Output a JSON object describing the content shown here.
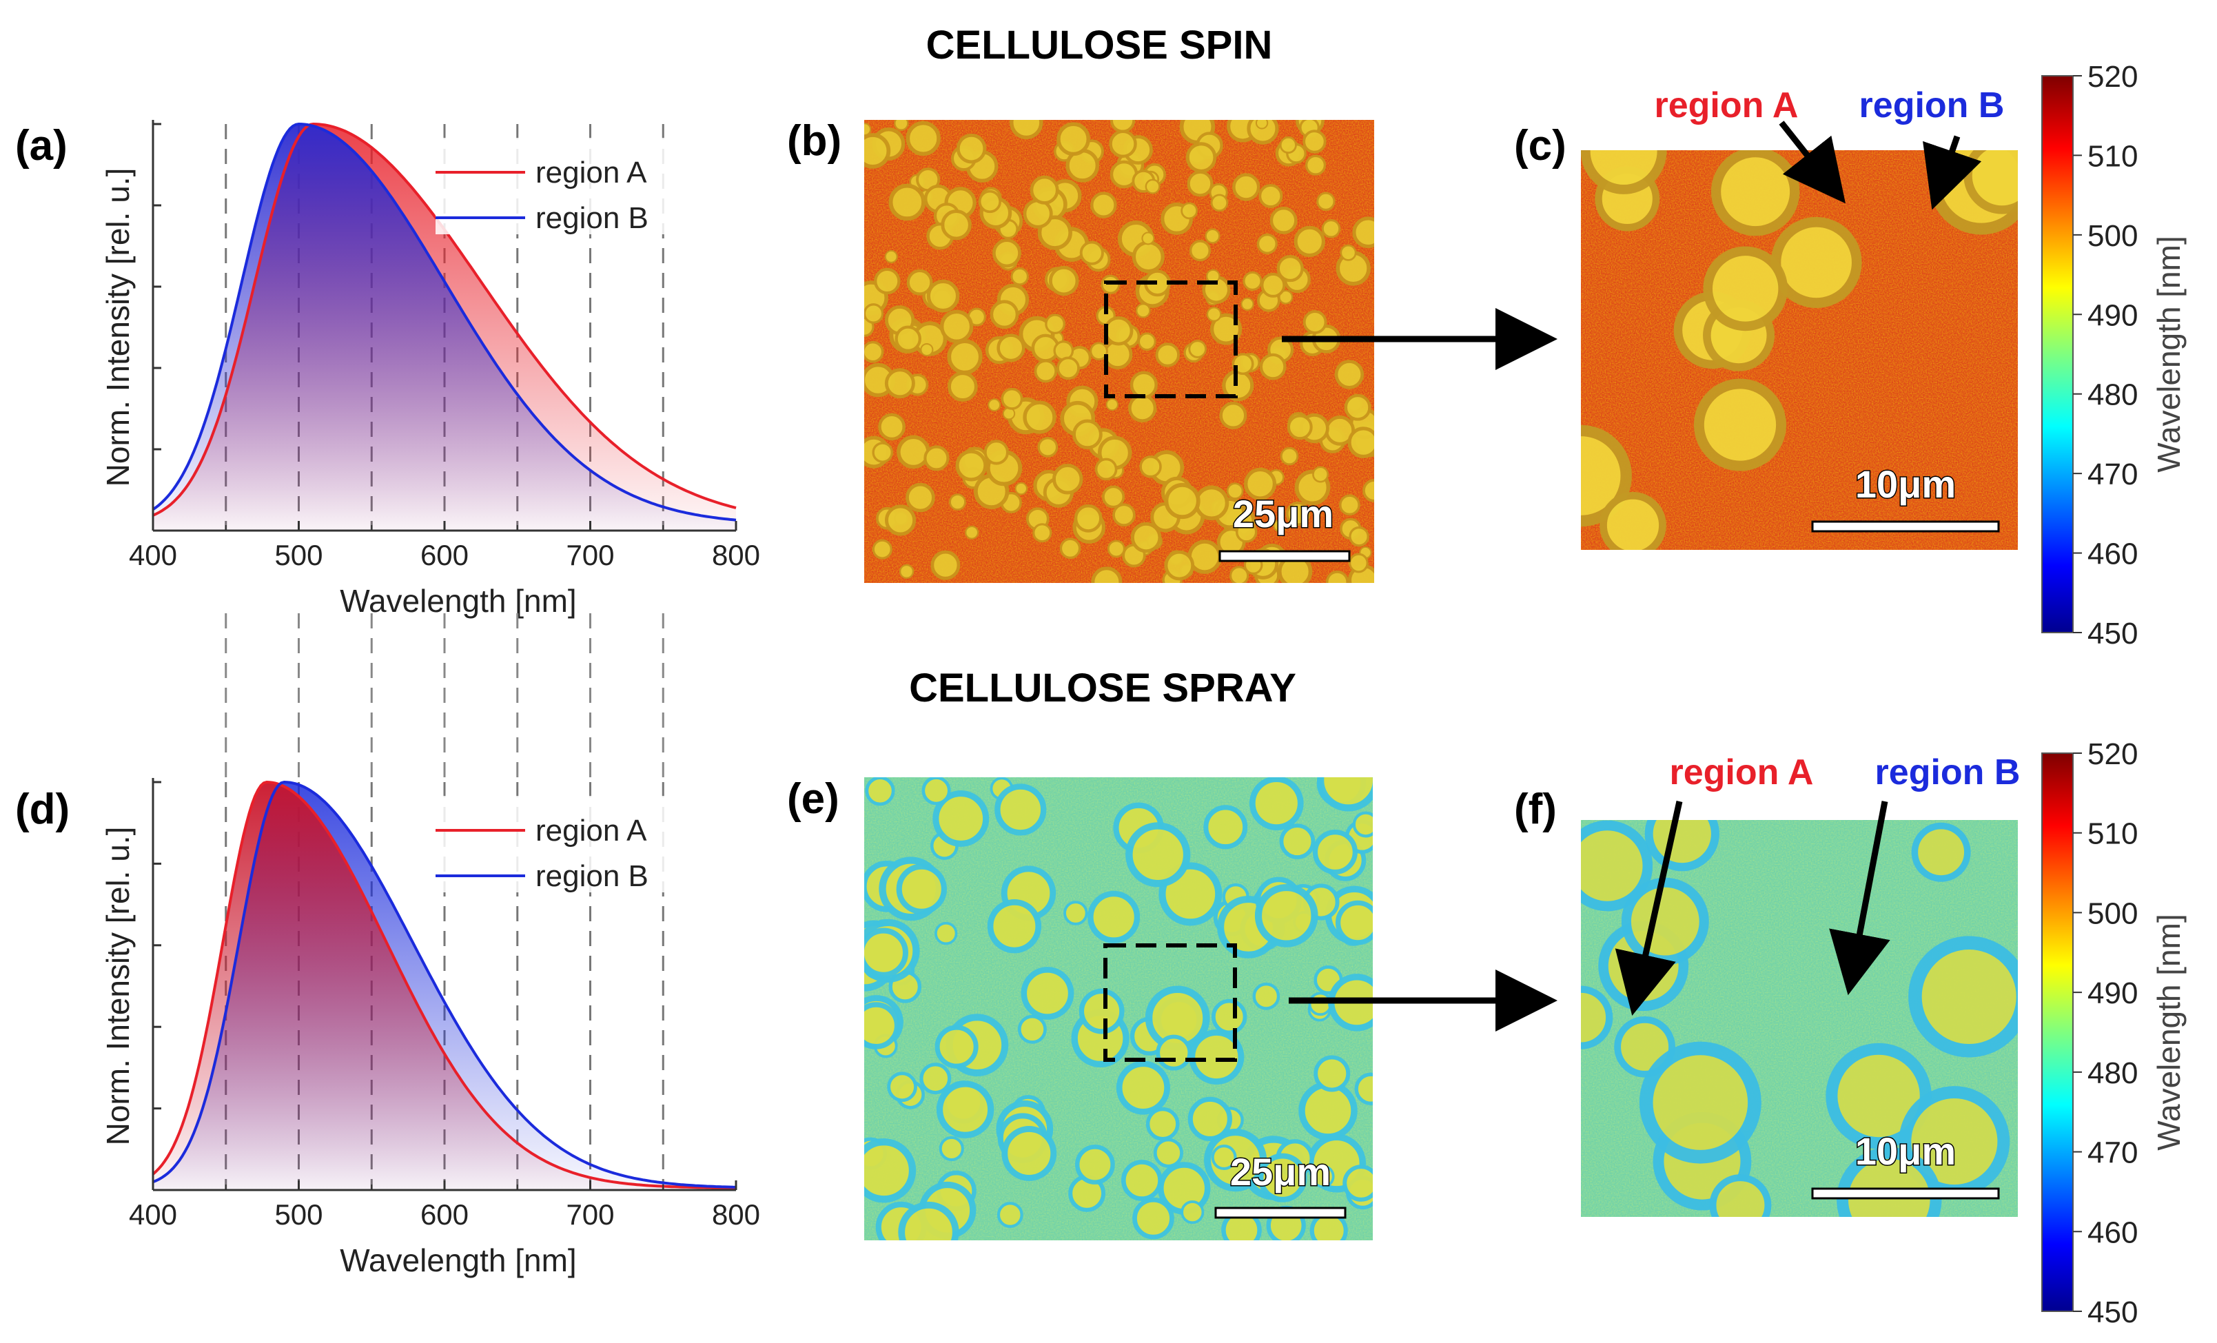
{
  "section_titles": {
    "spin": "CELLULOSE SPIN",
    "spray": "CELLULOSE SPRAY"
  },
  "panel_labels": {
    "a": "(a)",
    "b": "(b)",
    "c": "(c)",
    "d": "(d)",
    "e": "(e)",
    "f": "(f)"
  },
  "scale_bars": {
    "b": "25μm",
    "c": "10μm",
    "e": "25μm",
    "f": "10μm"
  },
  "region_annotations": {
    "region_a": "region A",
    "region_b": "region B"
  },
  "colors": {
    "region_a": "#e8202a",
    "region_b": "#1b2bdc",
    "spin_map_base": "#d8361e",
    "spray_map_base": "#74d4a0"
  },
  "colorbars": [
    {
      "label": "Wavelength [nm]",
      "ticks": [
        "520",
        "510",
        "500",
        "490",
        "480",
        "470",
        "460",
        "450"
      ],
      "range": [
        450,
        520
      ]
    },
    {
      "label": "Wavelength [nm]",
      "ticks": [
        "520",
        "510",
        "500",
        "490",
        "480",
        "470",
        "460",
        "450"
      ],
      "range": [
        450,
        520
      ]
    }
  ],
  "chart_data": [
    {
      "id": "a",
      "type": "area",
      "title": "",
      "xlabel": "Wavelength [nm]",
      "ylabel": "Norm. Intensity [rel. u.]",
      "xlim": [
        400,
        800
      ],
      "ylim": [
        0,
        1
      ],
      "x_ticks": [
        "400",
        "500",
        "600",
        "700",
        "800"
      ],
      "dashed_gridlines_x": [
        450,
        500,
        550,
        600,
        650,
        700,
        750
      ],
      "legend": {
        "position": "top-right",
        "entries": [
          "region A",
          "region B"
        ]
      },
      "series": [
        {
          "name": "region A",
          "color": "#e8202a",
          "peak": 510,
          "sigma_left": 40,
          "sigma_right": 115,
          "baseline": 0.015
        },
        {
          "name": "region B",
          "color": "#1b2bdc",
          "peak": 500,
          "sigma_left": 39,
          "sigma_right": 100,
          "baseline": 0.015
        }
      ]
    },
    {
      "id": "d",
      "type": "area",
      "title": "",
      "xlabel": "Wavelength [nm]",
      "ylabel": "Norm. Intensity [rel. u.]",
      "xlim": [
        400,
        800
      ],
      "ylim": [
        0,
        1
      ],
      "x_ticks": [
        "400",
        "500",
        "600",
        "700",
        "800"
      ],
      "dashed_gridlines_x": [
        450,
        500,
        550,
        600,
        650,
        700,
        750
      ],
      "legend": {
        "position": "top-right",
        "entries": [
          "region A",
          "region B"
        ]
      },
      "series": [
        {
          "name": "region A",
          "color": "#e8202a",
          "peak": 478,
          "sigma_left": 30,
          "sigma_right": 82,
          "baseline": 0.005
        },
        {
          "name": "region B",
          "color": "#1b2bdc",
          "peak": 490,
          "sigma_left": 31,
          "sigma_right": 88,
          "baseline": 0.005
        }
      ]
    }
  ]
}
